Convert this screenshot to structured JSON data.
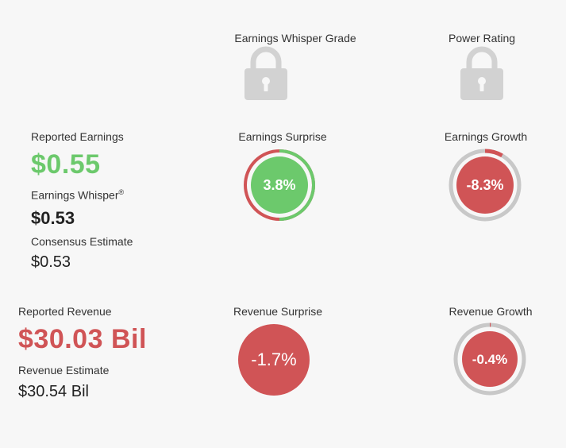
{
  "header": {
    "whisper_grade_label": "Earnings Whisper Grade",
    "power_rating_label": "Power Rating"
  },
  "icons": {
    "whisper_grade": "lock-icon",
    "power_rating": "lock-icon"
  },
  "earnings": {
    "reported_label": "Reported Earnings",
    "reported_value": "$0.55",
    "whisper_label": "Earnings Whisper",
    "whisper_mark": "®",
    "whisper_value": "$0.53",
    "consensus_label": "Consensus Estimate",
    "consensus_value": "$0.53",
    "surprise_label": "Earnings Surprise",
    "surprise_value": "3.8%",
    "growth_label": "Earnings Growth",
    "growth_value": "-8.3%"
  },
  "revenue": {
    "reported_label": "Reported Revenue",
    "reported_value": "$30.03 Bil",
    "estimate_label": "Revenue Estimate",
    "estimate_value": "$30.54 Bil",
    "surprise_label": "Revenue Surprise",
    "surprise_value": "-1.7%",
    "growth_label": "Revenue Growth",
    "growth_value": "-0.4%"
  },
  "colors": {
    "positive": "#6cc96c",
    "negative": "#d05456",
    "track": "#c8c8c8",
    "lock": "#d2d2d2",
    "background": "#f7f7f7"
  },
  "gauges": {
    "earnings_surprise": {
      "percent": 3.8,
      "ring": "positive"
    },
    "earnings_growth": {
      "percent": -8.3,
      "ring": "negative"
    },
    "revenue_surprise": {
      "percent": -1.7,
      "ring": "none"
    },
    "revenue_growth": {
      "percent": -0.4,
      "ring": "negative"
    }
  }
}
